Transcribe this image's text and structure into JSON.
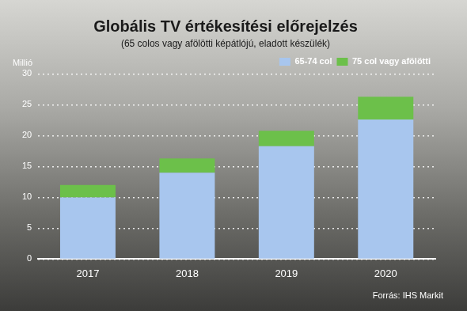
{
  "chart_data": {
    "type": "bar",
    "title": "Globális TV értékesítési előrejelzés",
    "subtitle": "(65 colos vagy afölötti képátlójú, eladott készülék)",
    "y_label": "Millió",
    "source": "Forrás: IHS Markit",
    "categories": [
      "2017",
      "2018",
      "2019",
      "2020"
    ],
    "series": [
      {
        "name": "65-74 col",
        "color": "#a8c6ee",
        "values": [
          10,
          14,
          18.3,
          22.6
        ]
      },
      {
        "name": "75 col vagy afölötti",
        "color": "#6cc04a",
        "values": [
          2,
          2.3,
          2.5,
          3.7
        ]
      }
    ],
    "stacked": true,
    "ylim": [
      0,
      30
    ],
    "yticks": [
      0,
      5,
      10,
      15,
      20,
      25,
      30
    ],
    "grid": true,
    "legend": "upper right"
  }
}
